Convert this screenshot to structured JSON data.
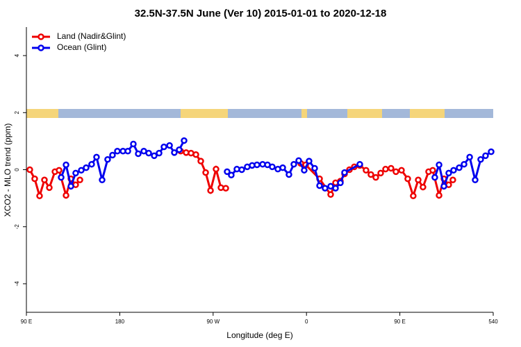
{
  "chart_data": {
    "type": "line",
    "title": "32.5N-37.5N June (Ver 10)   2015-01-01 to 2020-12-18",
    "xlabel": "Longitude (deg E)",
    "ylabel": "XCO2 - MLO trend (ppm)",
    "xlim": [
      90,
      540
    ],
    "ylim": [
      -5,
      5
    ],
    "xticks": [
      {
        "value": 90,
        "label": "90 E"
      },
      180,
      {
        "value": 270,
        "label": "90 W"
      },
      {
        "value": 360,
        "label": "0"
      },
      {
        "value": 450,
        "label": "90 E"
      },
      540
    ],
    "yticks": [
      -4,
      -2,
      0,
      2,
      4
    ],
    "legend": "top-left",
    "series": [
      {
        "name": "Land (Nadir&Glint)",
        "color": "#ee0000",
        "x": [
          93.3,
          98.0,
          102.7,
          107.4,
          112.1,
          117.5,
          121.5,
          128.2,
          132.9,
          137.5,
          141.6,
          null,
          238.7,
          244.0,
          248.7,
          253.4,
          258.1,
          262.8,
          267.5,
          272.8,
          277.5,
          282.2,
          null,
          354.5,
          359.2,
          372.6,
          383.3,
          388.0,
          392.7,
          396.7,
          401.4,
          406.1,
          411.4,
          417.4,
          422.1,
          426.8,
          431.5,
          436.2,
          441.5,
          446.2,
          451.6,
          457.6,
          462.9,
          467.7,
          472.3,
          477.7,
          481.7,
          487.8,
          492.5,
          497.1,
          501.1
        ],
        "values": [
          0.0,
          -0.32,
          -0.92,
          -0.36,
          -0.63,
          -0.07,
          -0.02,
          -0.9,
          -0.32,
          -0.53,
          -0.36,
          null,
          0.65,
          0.6,
          0.58,
          0.53,
          0.3,
          -0.1,
          -0.73,
          0.02,
          -0.63,
          -0.65,
          null,
          0.22,
          0.17,
          -0.32,
          -0.87,
          -0.46,
          -0.4,
          -0.15,
          0.0,
          0.1,
          0.15,
          -0.02,
          -0.17,
          -0.27,
          -0.12,
          0.02,
          0.05,
          -0.07,
          -0.02,
          -0.32,
          -0.92,
          -0.36,
          -0.61,
          -0.07,
          -0.02,
          -0.9,
          -0.32,
          -0.53,
          -0.36
        ]
      },
      {
        "name": "Ocean (Glint)",
        "color": "#0000ee",
        "x": [
          123.5,
          128.2,
          132.9,
          137.5,
          142.9,
          147.6,
          152.9,
          157.6,
          163.0,
          168.3,
          173.0,
          177.7,
          183.1,
          187.8,
          193.1,
          197.8,
          203.2,
          207.9,
          213.2,
          217.9,
          222.6,
          228.0,
          232.6,
          237.3,
          242.0,
          null,
          283.5,
          287.5,
          292.9,
          297.6,
          302.9,
          307.6,
          312.3,
          317.7,
          322.4,
          327.0,
          332.4,
          337.1,
          343.1,
          347.8,
          352.5,
          357.8,
          362.5,
          367.9,
          372.6,
          377.9,
          383.3,
          388.0,
          392.7,
          396.7,
          411.4,
          null,
          483.7,
          487.8,
          492.5,
          497.1,
          501.8,
          507.2,
          511.9,
          517.3,
          522.6,
          527.9,
          532.6,
          538.0
        ],
        "values": [
          -0.27,
          0.17,
          -0.58,
          -0.12,
          -0.02,
          0.07,
          0.19,
          0.44,
          -0.36,
          0.36,
          0.51,
          0.65,
          0.65,
          0.65,
          0.9,
          0.56,
          0.65,
          0.58,
          0.49,
          0.58,
          0.8,
          0.85,
          0.6,
          0.7,
          1.02,
          null,
          -0.07,
          -0.19,
          0.02,
          0.0,
          0.1,
          0.15,
          0.17,
          0.19,
          0.17,
          0.1,
          0.02,
          0.07,
          -0.17,
          0.19,
          0.32,
          -0.02,
          0.3,
          0.05,
          -0.56,
          -0.65,
          -0.58,
          -0.65,
          -0.46,
          -0.1,
          0.19,
          null,
          -0.27,
          0.17,
          -0.58,
          -0.12,
          -0.02,
          0.07,
          0.19,
          0.44,
          -0.36,
          0.36,
          0.49,
          0.63
        ]
      }
    ]
  }
}
